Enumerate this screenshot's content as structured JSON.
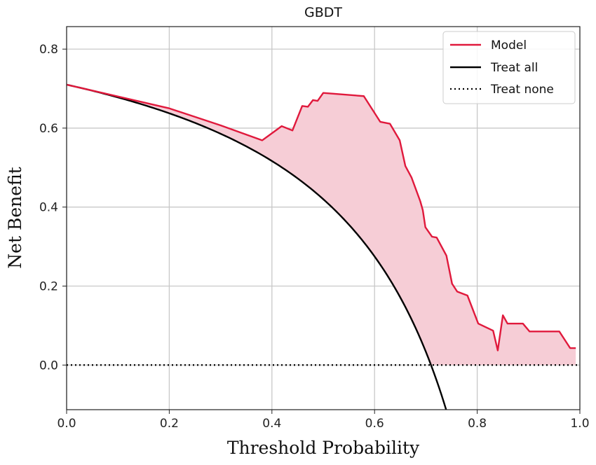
{
  "chart_data": {
    "type": "line",
    "title": "GBDT",
    "xlabel": "Threshold Probability",
    "ylabel": "Net Benefit",
    "xlim": [
      0.0,
      1.0
    ],
    "ylim": [
      -0.113,
      0.857
    ],
    "xticks": [
      "0.0",
      "0.2",
      "0.4",
      "0.6",
      "0.8",
      "1.0"
    ],
    "yticks": [
      "0.0",
      "0.2",
      "0.4",
      "0.6",
      "0.8"
    ],
    "grid": true,
    "legend_position": "top-right",
    "prevalence": 0.71,
    "series": [
      {
        "name": "Model",
        "color": "#e0193c",
        "style": "solid",
        "x": [
          0.0,
          0.16,
          0.2,
          0.3,
          0.381,
          0.419,
          0.44,
          0.459,
          0.47,
          0.48,
          0.489,
          0.5,
          0.579,
          0.611,
          0.63,
          0.649,
          0.66,
          0.672,
          0.689,
          0.694,
          0.699,
          0.712,
          0.721,
          0.74,
          0.751,
          0.761,
          0.781,
          0.802,
          0.831,
          0.84,
          0.85,
          0.859,
          0.889,
          0.902,
          0.96,
          0.981,
          0.992
        ],
        "y": [
          0.71,
          0.662,
          0.65,
          0.607,
          0.569,
          0.605,
          0.594,
          0.656,
          0.654,
          0.671,
          0.669,
          0.689,
          0.681,
          0.616,
          0.611,
          0.569,
          0.504,
          0.475,
          0.415,
          0.392,
          0.349,
          0.325,
          0.323,
          0.277,
          0.206,
          0.186,
          0.176,
          0.105,
          0.087,
          0.037,
          0.126,
          0.105,
          0.105,
          0.085,
          0.085,
          0.043,
          0.043
        ]
      },
      {
        "name": "Treat all",
        "color": "#000000",
        "style": "solid",
        "formula": "p - (1-p)*t/(1-t)"
      },
      {
        "name": "Treat none",
        "color": "#000000",
        "style": "dotted",
        "y_constant": 0.0
      }
    ],
    "fill_between": {
      "series": [
        "Model",
        "Treat all"
      ],
      "color": "#f6cdd6"
    }
  }
}
